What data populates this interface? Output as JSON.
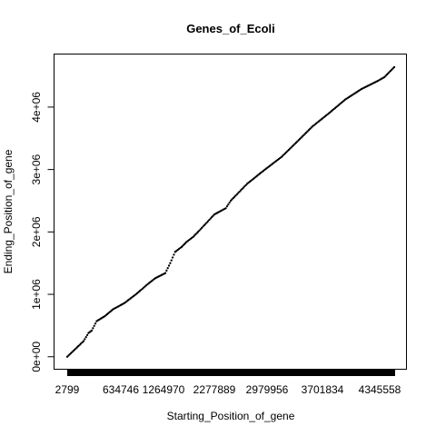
{
  "chart_data": {
    "type": "scatter",
    "title": "Genes_of_Ecoli",
    "xlabel": "Starting_Position_of_gene",
    "ylabel": "Ending_Position_of_gene",
    "x_tick_labels": [
      "2799",
      "634746",
      "1264970",
      "2277889",
      "2979956",
      "3701834",
      "4345558"
    ],
    "y_ticks": [
      0,
      1000000,
      2000000,
      3000000,
      4000000
    ],
    "y_tick_labels": [
      "0e+00",
      "1e+06",
      "2e+06",
      "3e+06",
      "4e+06"
    ],
    "ylim": [
      -200000,
      4850000
    ],
    "grid": false,
    "legend": "none",
    "point_color": "#000000",
    "series": [
      {
        "x": [
          0.0,
          0.03,
          0.05,
          0.065,
          0.075,
          0.09,
          0.115,
          0.14,
          0.175,
          0.21,
          0.25,
          0.27,
          0.3,
          0.315,
          0.33,
          0.35,
          0.365,
          0.385,
          0.4,
          0.45,
          0.485,
          0.5,
          0.55,
          0.6,
          0.655,
          0.7,
          0.75,
          0.8,
          0.85,
          0.9,
          0.95,
          0.97,
          0.985,
          1.0
        ],
        "y": [
          0,
          150000,
          250000,
          380000,
          420000,
          570000,
          650000,
          760000,
          860000,
          1000000,
          1180000,
          1260000,
          1340000,
          1500000,
          1680000,
          1760000,
          1840000,
          1920000,
          2000000,
          2280000,
          2380000,
          2500000,
          2770000,
          2980000,
          3200000,
          3430000,
          3690000,
          3900000,
          4120000,
          4290000,
          4420000,
          4480000,
          4560000,
          4640000
        ]
      }
    ]
  }
}
